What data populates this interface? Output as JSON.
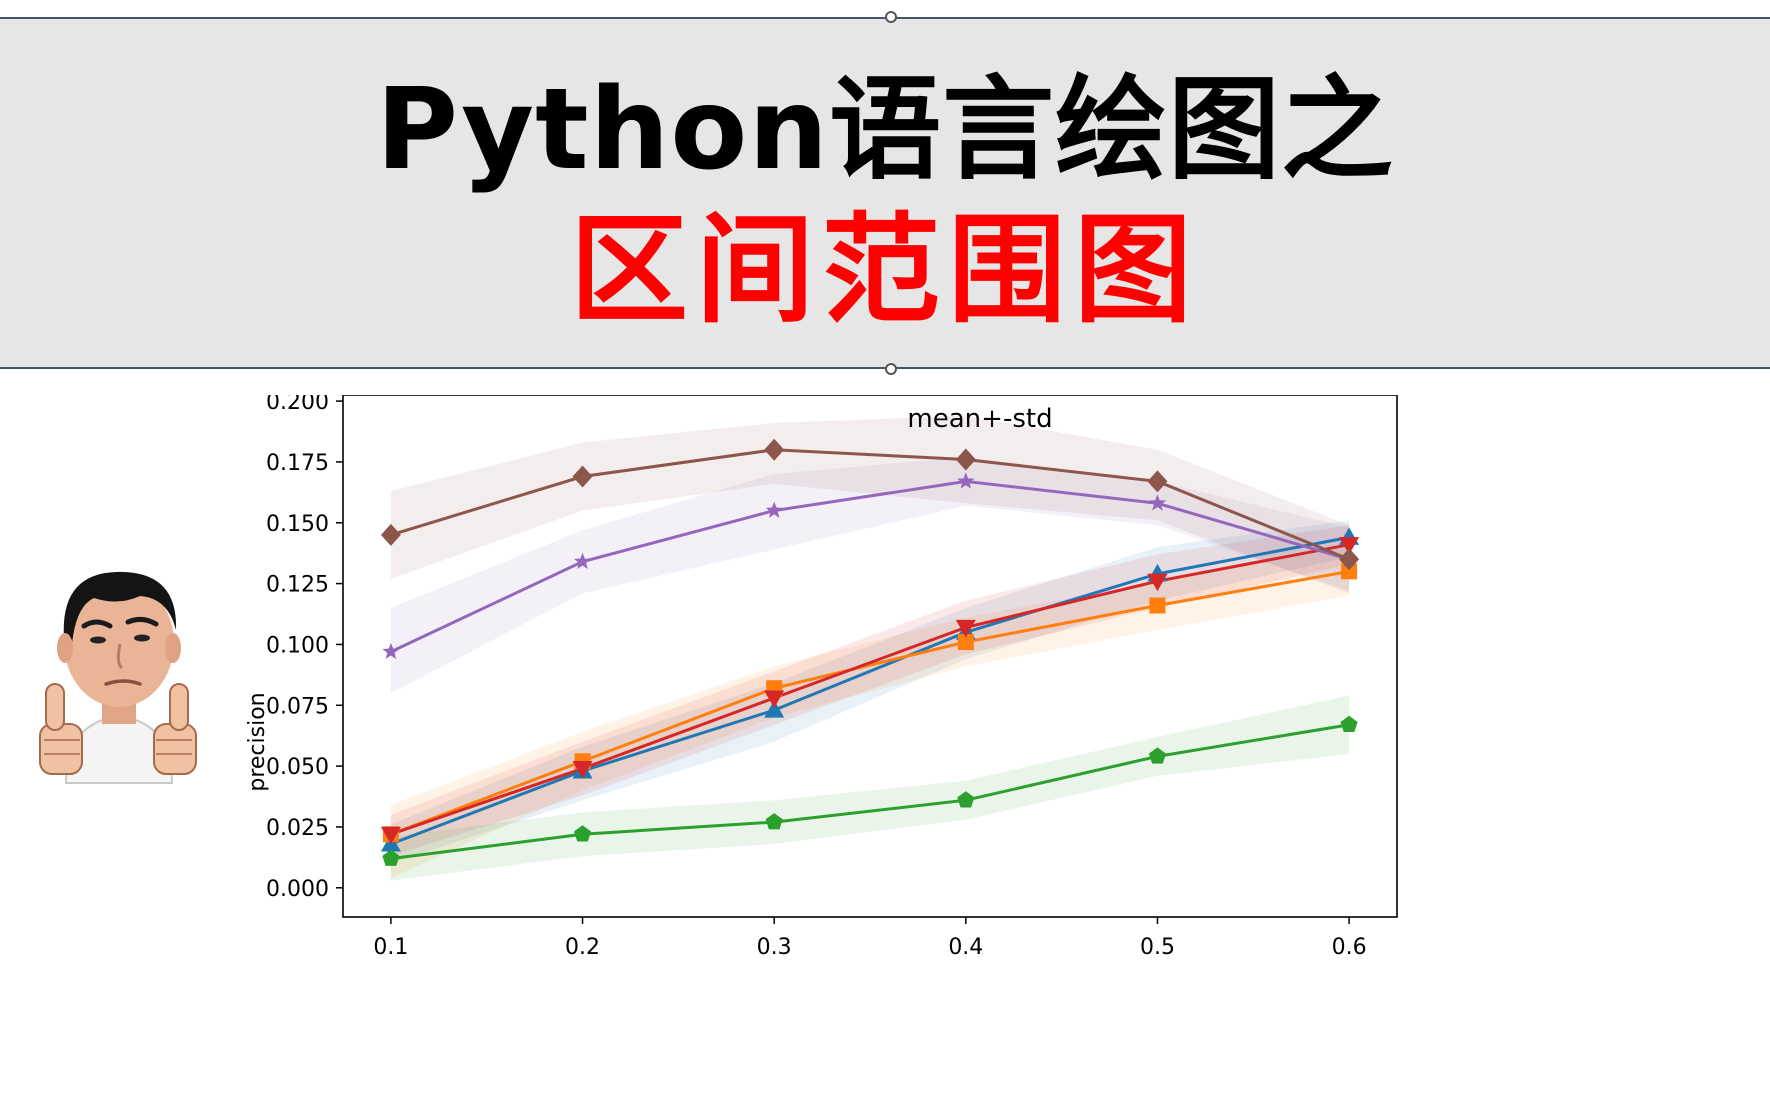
{
  "banner": {
    "title_line1": "Python语言绘图之",
    "title_line2": "区间范围图"
  },
  "colors": {
    "banner_bg": "#e6e6e6",
    "title_black": "#000000",
    "title_red": "#ff0000"
  },
  "avatar": {
    "icon": "thumbs-up-person-sticker"
  },
  "chart_data": {
    "type": "line",
    "title": "mean+-std",
    "xlabel": "",
    "ylabel": "precision",
    "x": [
      0.1,
      0.2,
      0.3,
      0.4,
      0.5,
      0.6
    ],
    "x_tick_labels": [
      "0.1",
      "0.2",
      "0.3",
      "0.4",
      "0.5",
      "0.6"
    ],
    "xlim": [
      0.075,
      0.625
    ],
    "ylim": [
      -0.012,
      0.2025
    ],
    "y_ticks": [
      0.0,
      0.025,
      0.05,
      0.075,
      0.1,
      0.125,
      0.15,
      0.175,
      0.2
    ],
    "y_tick_labels": [
      "0.000",
      "0.025",
      "0.050",
      "0.075",
      "0.100",
      "0.125",
      "0.150",
      "0.175",
      "0.200"
    ],
    "grid": false,
    "series": [
      {
        "name": "series-blue",
        "color": "#1f77b4",
        "marker": "triangle-up",
        "values": [
          0.018,
          0.048,
          0.073,
          0.105,
          0.129,
          0.144
        ],
        "lower": [
          0.01,
          0.036,
          0.06,
          0.094,
          0.118,
          0.136
        ],
        "upper": [
          0.026,
          0.058,
          0.084,
          0.115,
          0.14,
          0.151
        ]
      },
      {
        "name": "series-orange",
        "color": "#ff7f0e",
        "marker": "square",
        "values": [
          0.022,
          0.052,
          0.082,
          0.101,
          0.116,
          0.13
        ],
        "lower": [
          0.004,
          0.04,
          0.07,
          0.091,
          0.106,
          0.12
        ],
        "upper": [
          0.034,
          0.064,
          0.091,
          0.111,
          0.126,
          0.14
        ]
      },
      {
        "name": "series-green",
        "color": "#2ca02c",
        "marker": "pentagon",
        "values": [
          0.012,
          0.022,
          0.027,
          0.036,
          0.054,
          0.067
        ],
        "lower": [
          0.003,
          0.013,
          0.018,
          0.028,
          0.046,
          0.055
        ],
        "upper": [
          0.021,
          0.031,
          0.036,
          0.044,
          0.062,
          0.079
        ]
      },
      {
        "name": "series-red",
        "color": "#d62728",
        "marker": "triangle-down",
        "values": [
          0.022,
          0.049,
          0.078,
          0.107,
          0.126,
          0.141
        ],
        "lower": [
          0.013,
          0.038,
          0.067,
          0.096,
          0.115,
          0.133
        ],
        "upper": [
          0.03,
          0.06,
          0.089,
          0.118,
          0.137,
          0.149
        ]
      },
      {
        "name": "series-purple",
        "color": "#9467bd",
        "marker": "star",
        "values": [
          0.097,
          0.134,
          0.155,
          0.167,
          0.158,
          0.135
        ],
        "lower": [
          0.08,
          0.121,
          0.139,
          0.157,
          0.149,
          0.122
        ],
        "upper": [
          0.115,
          0.147,
          0.17,
          0.177,
          0.167,
          0.148
        ]
      },
      {
        "name": "series-brown",
        "color": "#8c564b",
        "marker": "diamond",
        "values": [
          0.145,
          0.169,
          0.18,
          0.176,
          0.167,
          0.135
        ],
        "lower": [
          0.127,
          0.155,
          0.166,
          0.158,
          0.151,
          0.121
        ],
        "upper": [
          0.163,
          0.183,
          0.191,
          0.194,
          0.18,
          0.149
        ]
      }
    ]
  }
}
